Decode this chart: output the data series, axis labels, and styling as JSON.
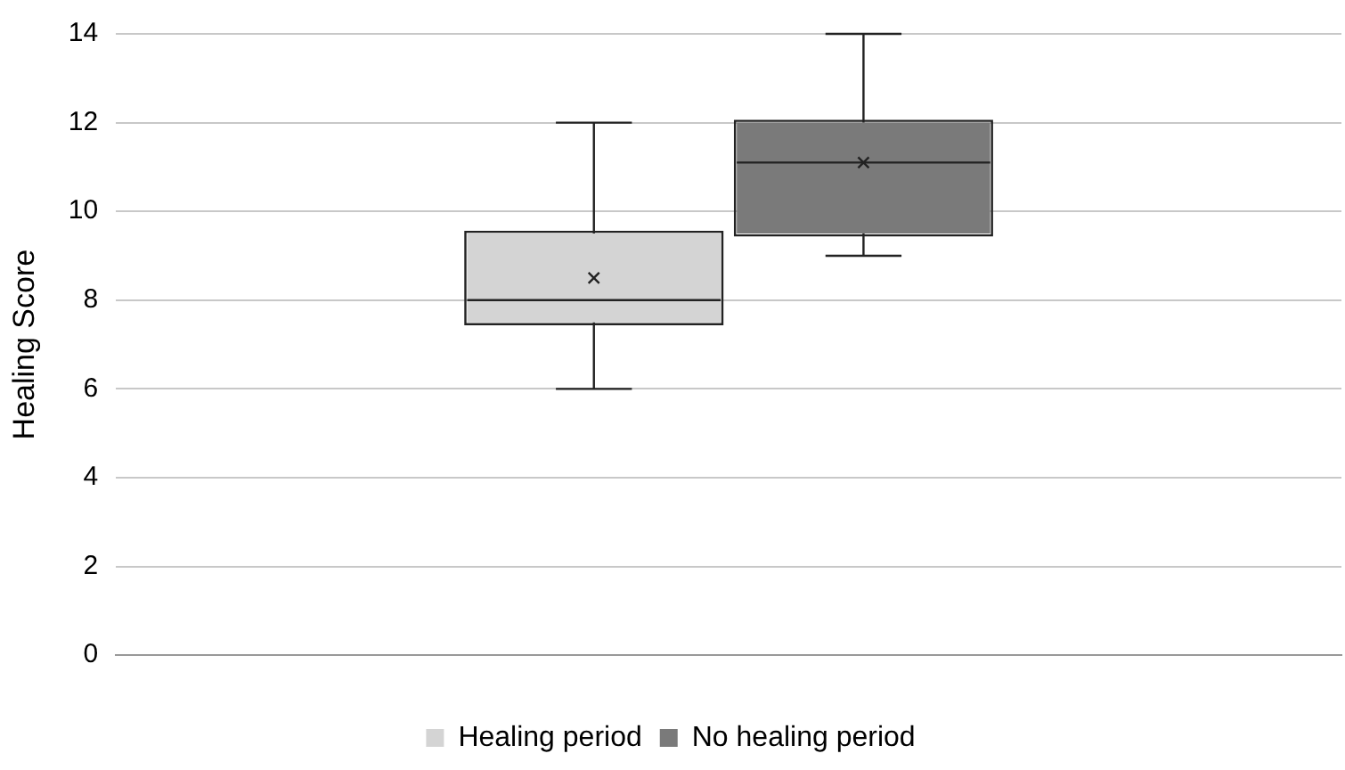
{
  "chart_data": {
    "type": "box",
    "ylabel": "Healing Score",
    "categories": [
      null
    ],
    "series": [
      {
        "name": "Healing period",
        "color": "#d4d4d4",
        "boxes": [
          {
            "low": 6,
            "q1": 7.5,
            "median": 8,
            "q3": 9.5,
            "high": 12,
            "mean": 8.5
          }
        ]
      },
      {
        "name": "No healing period",
        "color": "#7a7a7a",
        "boxes": [
          {
            "low": 9,
            "q1": 9.5,
            "median": 11.1,
            "q3": 12,
            "high": 14,
            "mean": 11.1
          }
        ]
      }
    ],
    "ylim": [
      0,
      14
    ],
    "yticks": [
      0,
      2,
      4,
      6,
      8,
      10,
      12,
      14
    ],
    "grid": "y",
    "legend": "bottom"
  }
}
